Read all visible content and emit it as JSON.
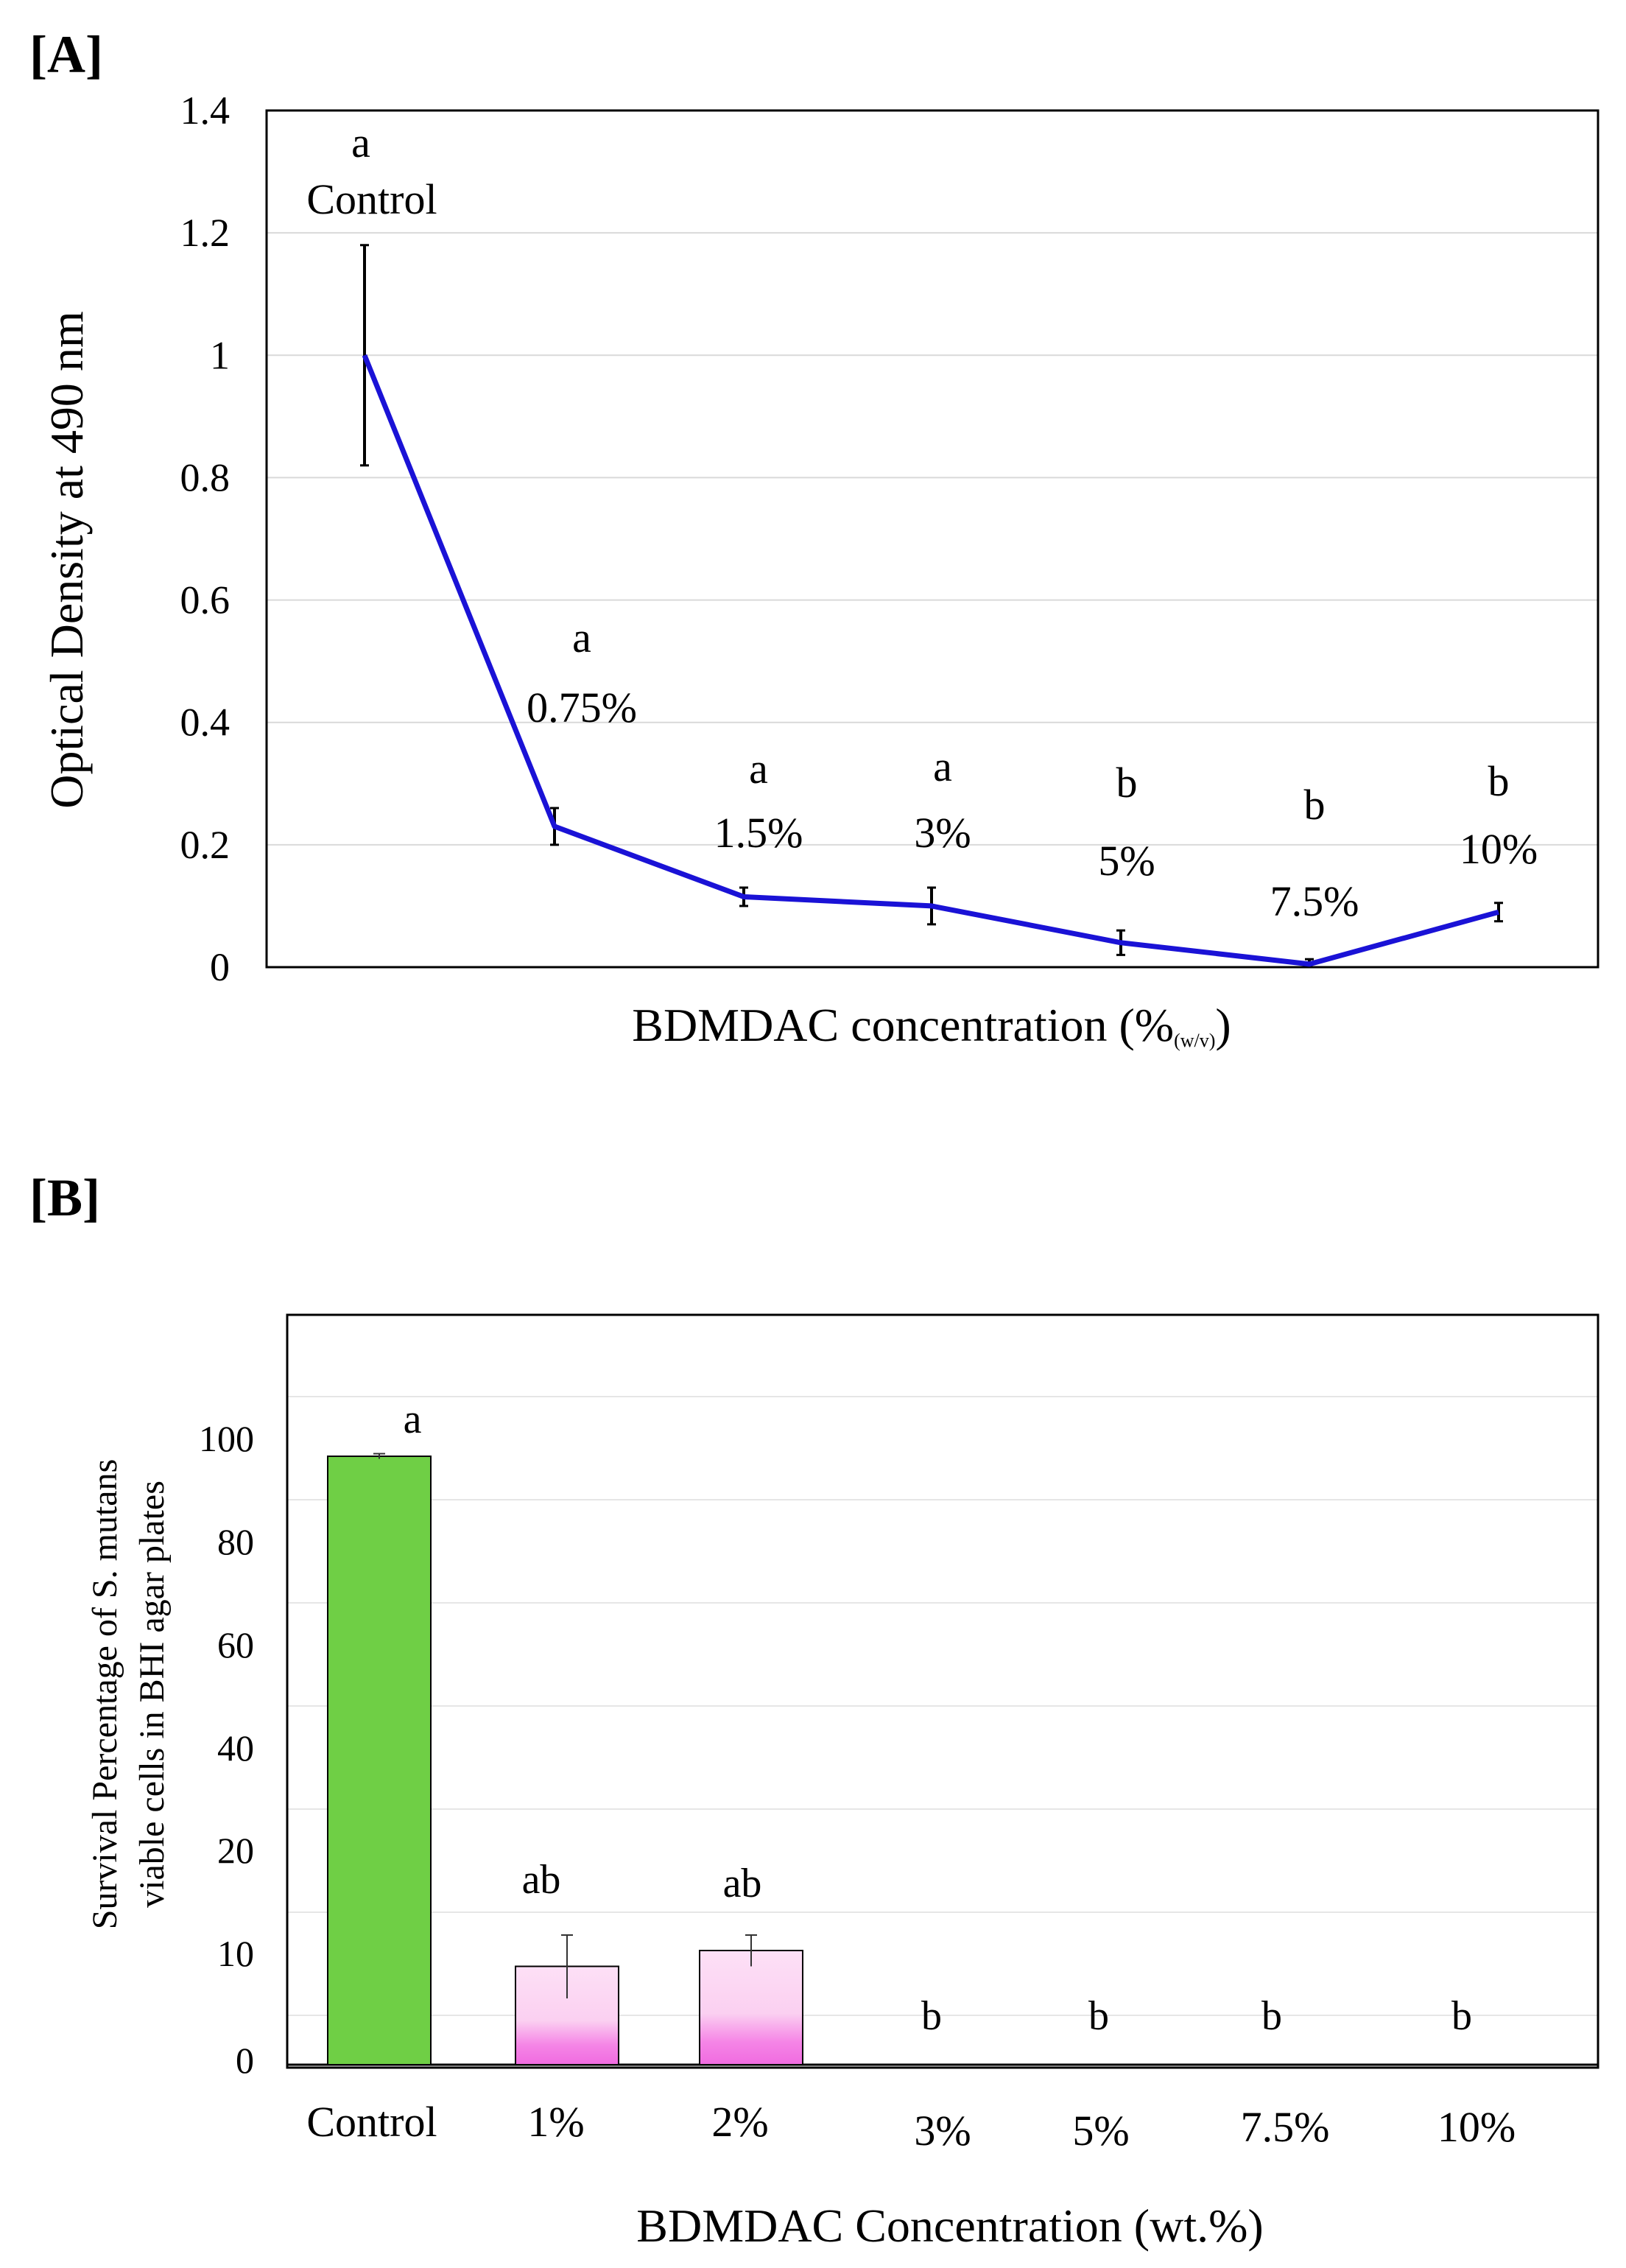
{
  "chart_data": [
    {
      "panel_label": "[A]",
      "type": "line",
      "categories": [
        "Control",
        "0.75%",
        "1.5%",
        "3%",
        "5%",
        "7.5%",
        "10%"
      ],
      "values": [
        1.0,
        0.23,
        0.115,
        0.1,
        0.04,
        0.005,
        0.09
      ],
      "errors": [
        0.18,
        0.03,
        0.015,
        0.03,
        0.02,
        0.008,
        0.015
      ],
      "significance": [
        "a",
        "a",
        "a",
        "a",
        "b",
        "b",
        "b"
      ],
      "xlabel": "BDMDAC concentration (%",
      "xlabel_sub": "(w/v)",
      "xlabel_end": ")",
      "ylabel": "Optical Density at 490 nm",
      "ylim": [
        0,
        1.4
      ],
      "yticks": [
        "0",
        "0.2",
        "0.4",
        "0.6",
        "0.8",
        "1",
        "1.2",
        "1.4"
      ],
      "grid": true,
      "line_color": "#1a12d6"
    },
    {
      "panel_label": "[B]",
      "type": "bar",
      "categories": [
        "Control",
        "1%",
        "2%",
        "3%",
        "5%",
        "7.5%",
        "10%"
      ],
      "values": [
        97,
        9,
        10.5,
        0,
        0,
        0,
        0
      ],
      "errors": [
        0.5,
        3,
        1.5,
        0,
        0,
        0,
        0
      ],
      "significance": [
        "a",
        "ab",
        "ab",
        "b",
        "b",
        "b",
        "b"
      ],
      "xlabel": "BDMDAC Concentration (wt.%)",
      "ylabel_line1": "Survival Percentage of S. mutans",
      "ylabel_line2": "viable cells in BHI agar plates",
      "ylim": [
        0,
        120
      ],
      "yticks": [
        "0",
        "10",
        "20",
        "40",
        "60",
        "80",
        "100"
      ],
      "grid": true,
      "bar_colors": [
        "#6fcf45",
        "#fbd4f2",
        "#fbd4f2",
        "#ffffff",
        "#ffffff",
        "#ffffff",
        "#ffffff"
      ],
      "bar_accent": "#f06be0"
    }
  ]
}
